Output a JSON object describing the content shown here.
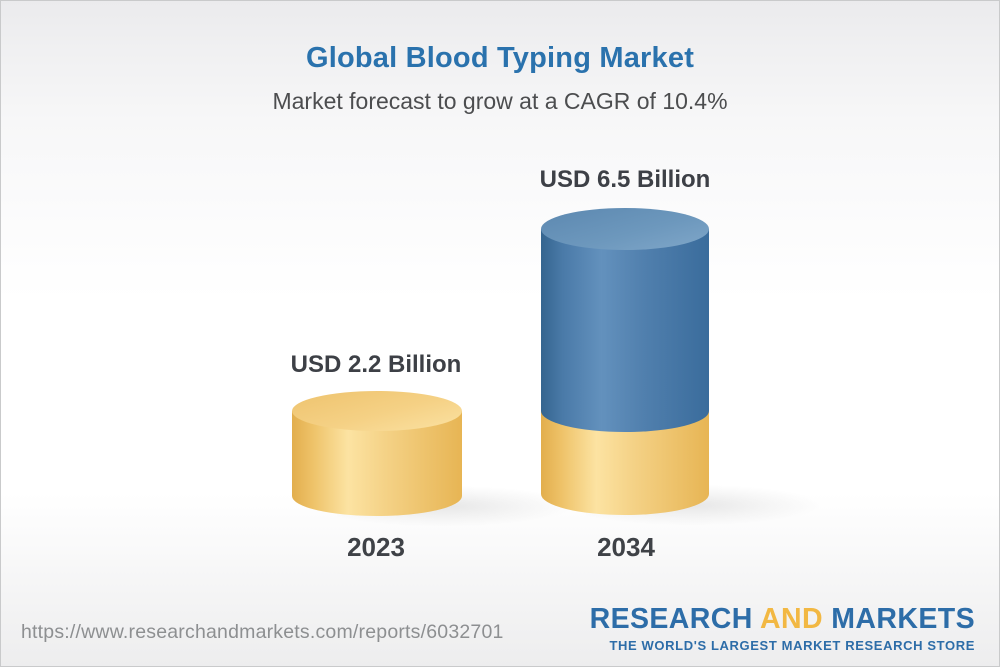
{
  "header": {
    "title": "Global Blood Typing Market",
    "subtitle": "Market forecast to grow at a CAGR of 10.4%"
  },
  "chart_data": {
    "type": "bar",
    "variant": "3d-stacked-cylinder",
    "title": "Global Blood Typing Market",
    "subtitle": "Market forecast to grow at a CAGR of 10.4%",
    "cagr_percent": 10.4,
    "unit": "USD Billion",
    "categories": [
      "2023",
      "2034"
    ],
    "values": [
      2.2,
      6.5
    ],
    "bar_labels": [
      "USD 2.2 Billion",
      "USD 6.5 Billion"
    ],
    "stacking_note": "2034 bar shows the 2023 base value as a gold segment with forecast growth as a blue segment on top",
    "grid": false,
    "legend_position": "none",
    "ylim": [
      0,
      6.5
    ],
    "colors": {
      "gold_bar": "#F0C26A",
      "gold_bar_highlight": "#FCE3A2",
      "gold_bar_shade": "#E2AE4D",
      "blue_bar": "#4A7AA8",
      "blue_bar_highlight": "#6391BD",
      "blue_bar_shade": "#35658F",
      "title_blue": "#2A72AD",
      "label_dark": "#3D4046"
    }
  },
  "footer": {
    "url": "https://www.researchandmarkets.com/reports/6032701",
    "logo": {
      "word1": "RESEARCH",
      "word2": "AND",
      "word3": "MARKETS",
      "tagline": "THE WORLD'S LARGEST MARKET RESEARCH STORE",
      "blue": "#2D6DA8",
      "gold": "#F2B843"
    }
  }
}
